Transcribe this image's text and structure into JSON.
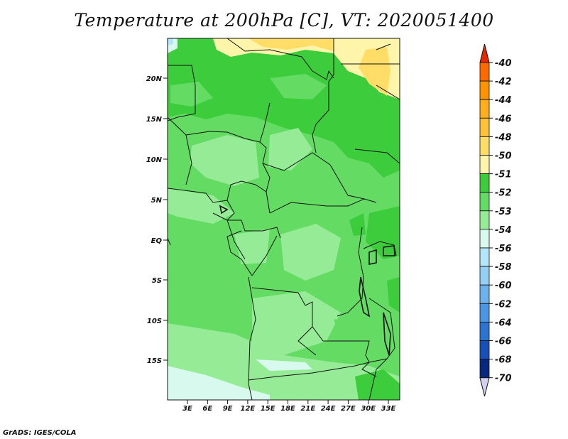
{
  "title": "Temperature at 200hPa [C], VT: 2020051400",
  "credit": "GrADS: IGES/COLA",
  "map": {
    "lat_labels": [
      "20N",
      "15N",
      "10N",
      "5N",
      "EQ",
      "5S",
      "10S",
      "15S"
    ],
    "lon_labels": [
      "3E",
      "6E",
      "9E",
      "12E",
      "15E",
      "18E",
      "21E",
      "24E",
      "27E",
      "30E",
      "33E"
    ]
  },
  "colorbar": {
    "labels": [
      "-40",
      "-42",
      "-44",
      "-46",
      "-48",
      "-50",
      "-51",
      "-52",
      "-53",
      "-54",
      "-56",
      "-58",
      "-60",
      "-62",
      "-64",
      "-66",
      "-68",
      "-70"
    ],
    "colors": [
      "#ff3a00",
      "#ff6a00",
      "#ff9400",
      "#ffae1e",
      "#ffc03a",
      "#ffdd66",
      "#fff5aa",
      "#3ccc3c",
      "#64dc64",
      "#96ec96",
      "#d8f9ee",
      "#b4e6fa",
      "#94cff6",
      "#6cb2ee",
      "#4a96e2",
      "#2c74d2",
      "#1650b8",
      "#08287e",
      "#0a0a50"
    ],
    "top_arrow_color": "#e62800",
    "bottom_arrow_color": "#d2d2f0"
  }
}
